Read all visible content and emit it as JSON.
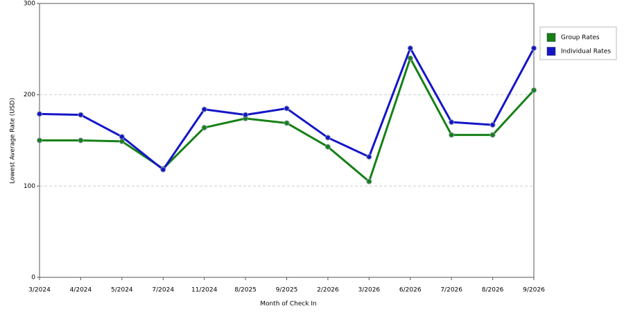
{
  "chart_data": {
    "type": "line",
    "x_label": "Month of Check In",
    "y_label": "Lowest Average Rate (USD)",
    "categories": [
      "3/2024",
      "4/2024",
      "5/2024",
      "7/2024",
      "11/2024",
      "8/2025",
      "9/2025",
      "2/2026",
      "3/2026",
      "6/2026",
      "7/2026",
      "8/2026",
      "9/2026"
    ],
    "series": [
      {
        "name": "Group Rates",
        "color": "#168016",
        "values": [
          150,
          150,
          149,
          119,
          164,
          174,
          169,
          143,
          105,
          240,
          156,
          156,
          205
        ]
      },
      {
        "name": "Individual Rates",
        "color": "#1515c8",
        "values": [
          179,
          178,
          154,
          118,
          184,
          178,
          185,
          153,
          132,
          251,
          170,
          167,
          251
        ]
      }
    ],
    "ylim": [
      0,
      300
    ],
    "yticks": [
      0,
      100,
      200,
      300
    ],
    "grid": true,
    "legend": "right"
  }
}
